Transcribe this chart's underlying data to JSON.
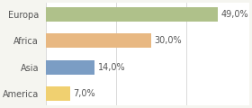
{
  "categories": [
    "Europa",
    "Africa",
    "Asia",
    "America"
  ],
  "values": [
    49.0,
    30.0,
    14.0,
    7.0
  ],
  "labels": [
    "49,0%",
    "30,0%",
    "14,0%",
    "7,0%"
  ],
  "bar_colors": [
    "#afc18a",
    "#e8b882",
    "#7b9dc4",
    "#f0d070"
  ],
  "background_color": "#f5f5f0",
  "plot_bg_color": "#ffffff",
  "xlim": [
    0,
    58
  ],
  "bar_height": 0.55,
  "label_fontsize": 7,
  "category_fontsize": 7,
  "label_color": "#555555",
  "tick_color": "#555555",
  "grid_color": "#cccccc"
}
